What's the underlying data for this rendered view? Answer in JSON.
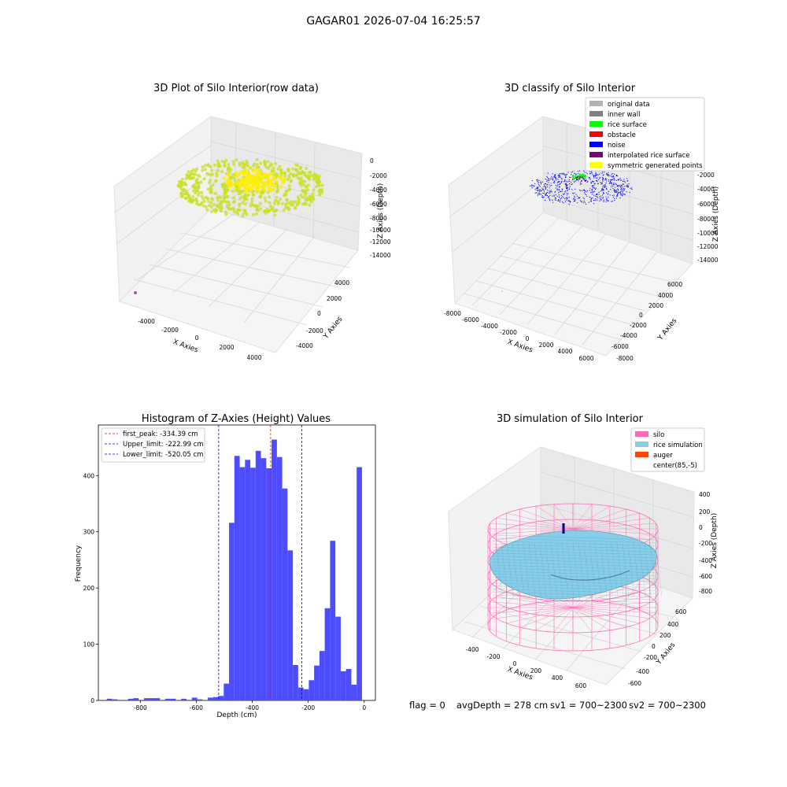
{
  "figure": {
    "suptitle": "GAGAR01 2026-07-04 16:25:57",
    "status": {
      "flag": "flag = 0",
      "avg_depth": "avgDepth = 278 cm",
      "sv1": "sv1 = 700~2300",
      "sv2": "sv2 = 700~2300"
    }
  },
  "chart_data": [
    {
      "type": "scatter",
      "projection": "3d",
      "title": "3D Plot of Silo Interior(row data)",
      "xlabel": "X Axies",
      "ylabel": "Y Axies",
      "zlabel": "Z Axies (Depth)",
      "x_ticks": [
        "-4000",
        "-2000",
        "0",
        "2000",
        "4000"
      ],
      "y_ticks": [
        "-4000",
        "-2000",
        "0",
        "2000",
        "4000"
      ],
      "z_ticks": [
        "0",
        "-2000",
        "-4000",
        "-6000",
        "-8000",
        "-10000",
        "-12000",
        "-14000"
      ],
      "point_color": "#c8e020",
      "center_color": "#ffee00",
      "outlier_color": "#9b59b6",
      "grid": true
    },
    {
      "type": "scatter",
      "projection": "3d",
      "title": "3D classify of Silo Interior",
      "xlabel": "X Axies",
      "ylabel": "Y Axies",
      "zlabel": "Z Axies (Depth)",
      "x_ticks": [
        "-8000",
        "-6000",
        "-4000",
        "-2000",
        "0",
        "2000",
        "4000",
        "6000"
      ],
      "y_ticks": [
        "6000",
        "4000",
        "2000",
        "0",
        "-2000",
        "-4000",
        "-6000",
        "-8000"
      ],
      "z_ticks": [
        "0",
        "-2000",
        "-4000",
        "-6000",
        "-8000",
        "-10000",
        "-12000",
        "-14000"
      ],
      "legend_position": "top-right",
      "legend": [
        {
          "label": "original data",
          "color": "#b3b3b3"
        },
        {
          "label": "inner wall",
          "color": "#808080"
        },
        {
          "label": "rice surface",
          "color": "#00ff00"
        },
        {
          "label": "obstacle",
          "color": "#ff0000"
        },
        {
          "label": "noise",
          "color": "#0000ff"
        },
        {
          "label": "interpolated rice surface",
          "color": "#800080"
        },
        {
          "label": "symmetric generated points",
          "color": "#ffff00"
        }
      ],
      "grid": true
    },
    {
      "type": "bar",
      "title": "Histogram of Z-Axies (Height) Values",
      "xlabel": "Depth (cm)",
      "ylabel": "Frequency",
      "xlim": [
        -950,
        40
      ],
      "ylim": [
        0,
        490
      ],
      "x_ticks": [
        -800,
        -600,
        -400,
        -200,
        0
      ],
      "y_ticks": [
        0,
        100,
        200,
        300,
        400
      ],
      "bin_width": 19,
      "bin_starts": [
        -920,
        -901,
        -882,
        -863,
        -844,
        -825,
        -806,
        -787,
        -768,
        -749,
        -730,
        -711,
        -692,
        -673,
        -654,
        -635,
        -616,
        -597,
        -578,
        -559,
        -540,
        -521,
        -502,
        -483,
        -464,
        -445,
        -426,
        -407,
        -388,
        -369,
        -350,
        -331,
        -312,
        -293,
        -274,
        -255,
        -236,
        -217,
        -198,
        -179,
        -160,
        -141,
        -122,
        -103,
        -84,
        -65,
        -46,
        -27,
        -8
      ],
      "values": [
        3,
        2,
        1,
        0,
        3,
        4,
        1,
        4,
        4,
        4,
        1,
        3,
        3,
        0,
        3,
        1,
        5,
        2,
        0,
        5,
        6,
        8,
        30,
        316,
        435,
        415,
        428,
        414,
        444,
        431,
        413,
        464,
        433,
        377,
        267,
        63,
        23,
        20,
        36,
        62,
        88,
        164,
        284,
        149,
        52,
        56,
        28,
        415,
        0
      ],
      "bar_color": "#4d4dff",
      "vlines": [
        {
          "label": "first_peak: -334.39 cm",
          "x": -334.39,
          "color": "#ff0000"
        },
        {
          "label": "Upper_limit: -222.99 cm",
          "x": -222.99,
          "color": "#0000ff"
        },
        {
          "label": "Lower_limit: -520.05 cm",
          "x": -520.05,
          "color": "#0000ff"
        }
      ],
      "legend_position": "top-left",
      "grid": false
    },
    {
      "type": "surface",
      "projection": "3d",
      "title": "3D simulation of Silo Interior",
      "xlabel": "X Axies",
      "ylabel": "Y Axies",
      "zlabel": "Z Axies (Depth)",
      "x_ticks": [
        "-400",
        "-200",
        "0",
        "200",
        "400",
        "600"
      ],
      "y_ticks": [
        "600",
        "400",
        "200",
        "0",
        "-200",
        "-400",
        "-600"
      ],
      "z_ticks": [
        "400",
        "200",
        "0",
        "-200",
        "-400",
        "-600",
        "-800"
      ],
      "legend_position": "top-right",
      "legend": [
        {
          "label": "silo",
          "color": "#ff69b4"
        },
        {
          "label": "rice simulation",
          "color": "#87ceeb"
        },
        {
          "label": "auger",
          "color": "#ff4500"
        },
        {
          "label": "center(85,-5)",
          "color": "#ffffff"
        }
      ],
      "grid": true
    }
  ]
}
